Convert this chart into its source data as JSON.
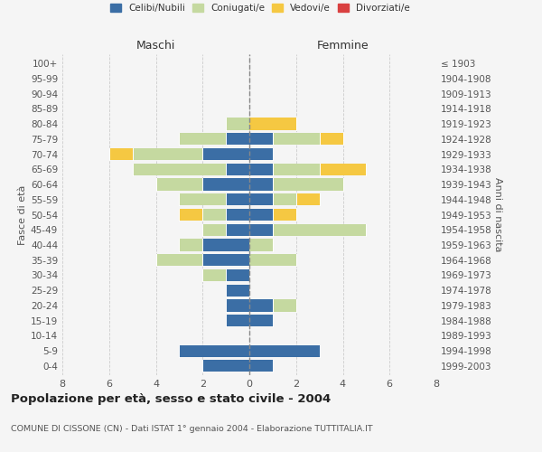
{
  "age_groups": [
    "0-4",
    "5-9",
    "10-14",
    "15-19",
    "20-24",
    "25-29",
    "30-34",
    "35-39",
    "40-44",
    "45-49",
    "50-54",
    "55-59",
    "60-64",
    "65-69",
    "70-74",
    "75-79",
    "80-84",
    "85-89",
    "90-94",
    "95-99",
    "100+"
  ],
  "birth_years": [
    "1999-2003",
    "1994-1998",
    "1989-1993",
    "1984-1988",
    "1979-1983",
    "1974-1978",
    "1969-1973",
    "1964-1968",
    "1959-1963",
    "1954-1958",
    "1949-1953",
    "1944-1948",
    "1939-1943",
    "1934-1938",
    "1929-1933",
    "1924-1928",
    "1919-1923",
    "1914-1918",
    "1909-1913",
    "1904-1908",
    "≤ 1903"
  ],
  "male_celibi": [
    2,
    3,
    0,
    1,
    1,
    1,
    1,
    2,
    2,
    1,
    1,
    1,
    2,
    1,
    2,
    1,
    0,
    0,
    0,
    0,
    0
  ],
  "male_coniugati": [
    0,
    0,
    0,
    0,
    0,
    0,
    1,
    2,
    1,
    1,
    1,
    2,
    2,
    4,
    3,
    2,
    1,
    0,
    0,
    0,
    0
  ],
  "male_vedovi": [
    0,
    0,
    0,
    0,
    0,
    0,
    0,
    0,
    0,
    0,
    1,
    0,
    0,
    0,
    1,
    0,
    0,
    0,
    0,
    0,
    0
  ],
  "male_divorziati": [
    0,
    0,
    0,
    0,
    0,
    0,
    0,
    0,
    0,
    0,
    0,
    0,
    0,
    0,
    0,
    0,
    0,
    0,
    0,
    0,
    0
  ],
  "female_celibi": [
    1,
    3,
    0,
    1,
    1,
    0,
    0,
    0,
    0,
    1,
    1,
    1,
    1,
    1,
    1,
    1,
    0,
    0,
    0,
    0,
    0
  ],
  "female_coniugati": [
    0,
    0,
    0,
    0,
    1,
    0,
    0,
    2,
    1,
    4,
    0,
    1,
    3,
    2,
    0,
    2,
    0,
    0,
    0,
    0,
    0
  ],
  "female_vedovi": [
    0,
    0,
    0,
    0,
    0,
    0,
    0,
    0,
    0,
    0,
    1,
    1,
    0,
    2,
    0,
    1,
    2,
    0,
    0,
    0,
    0
  ],
  "female_divorziati": [
    0,
    0,
    0,
    0,
    0,
    0,
    0,
    0,
    0,
    0,
    0,
    0,
    0,
    0,
    0,
    0,
    0,
    0,
    0,
    0,
    0
  ],
  "colors": {
    "celibi": "#3b6ea5",
    "coniugati": "#c5d9a0",
    "vedovi": "#f5c842",
    "divorziati": "#d94040"
  },
  "title": "Popolazione per età, sesso e stato civile - 2004",
  "subtitle": "COMUNE DI CISSONE (CN) - Dati ISTAT 1° gennaio 2004 - Elaborazione TUTTITALIA.IT",
  "xlabel_left": "Maschi",
  "xlabel_right": "Femmine",
  "ylabel_left": "Fasce di età",
  "ylabel_right": "Anni di nascita",
  "xlim": 8,
  "background_color": "#f5f5f5",
  "grid_color": "#cccccc"
}
